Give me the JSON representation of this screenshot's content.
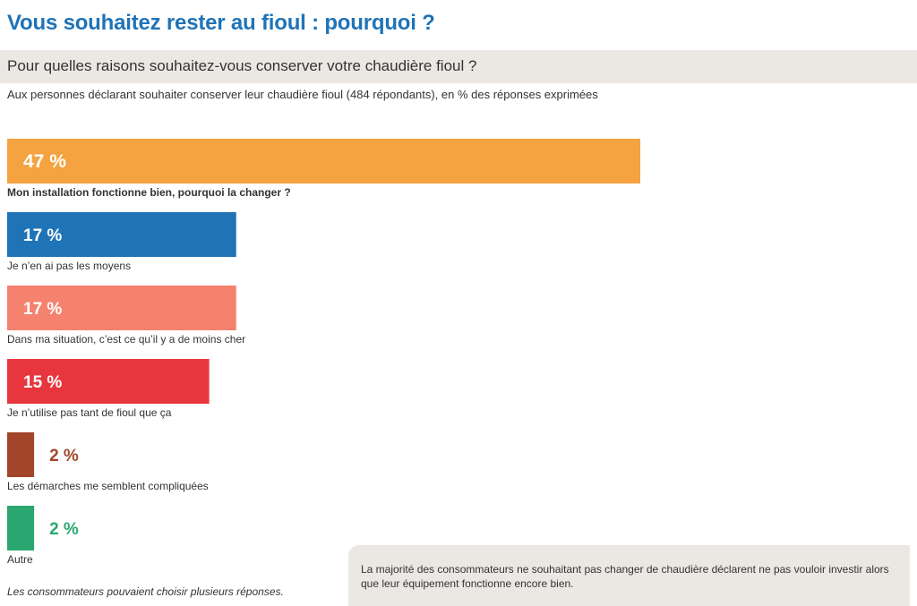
{
  "header": {
    "title": "Vous souhaitez rester au fioul : pourquoi ?",
    "subtitle": "Pour quelles raisons souhaitez-vous conserver votre chaudière fioul ?",
    "note": "Aux personnes déclarant souhaiter conserver leur chaudière fioul (484 répondants), en % des réponses exprimées"
  },
  "footnote": "Les consommateurs pouvaient choisir plusieurs réponses.",
  "callout": {
    "text": "La majorité des consommateurs ne souhaitant pas changer de chaudière déclarent ne pas vouloir investir alors que leur équipement fonctionne encore bien."
  },
  "chart_data": {
    "type": "bar",
    "orientation": "horizontal",
    "xlim": [
      0,
      47
    ],
    "unit": "%",
    "categories": [
      "Mon installation fonctionne bien, pourquoi la changer ?",
      "Je n’en ai pas les moyens",
      "Dans ma situation, c’est ce qu’il y a de moins cher",
      "Je n’utilise pas tant de fioul que ça",
      "Les démarches me semblent compliquées",
      "Autre"
    ],
    "values": [
      47,
      17,
      17,
      15,
      2,
      2
    ],
    "value_labels": [
      "47 %",
      "17 %",
      "17 %",
      "15 %",
      "2 %",
      "2 %"
    ],
    "colors": [
      "#f4a340",
      "#1f73b7",
      "#f4826f",
      "#e8363f",
      "#a2452b",
      "#2aa770"
    ],
    "emphasis": [
      true,
      false,
      false,
      false,
      false,
      false
    ],
    "grid": false,
    "legend": "none"
  }
}
